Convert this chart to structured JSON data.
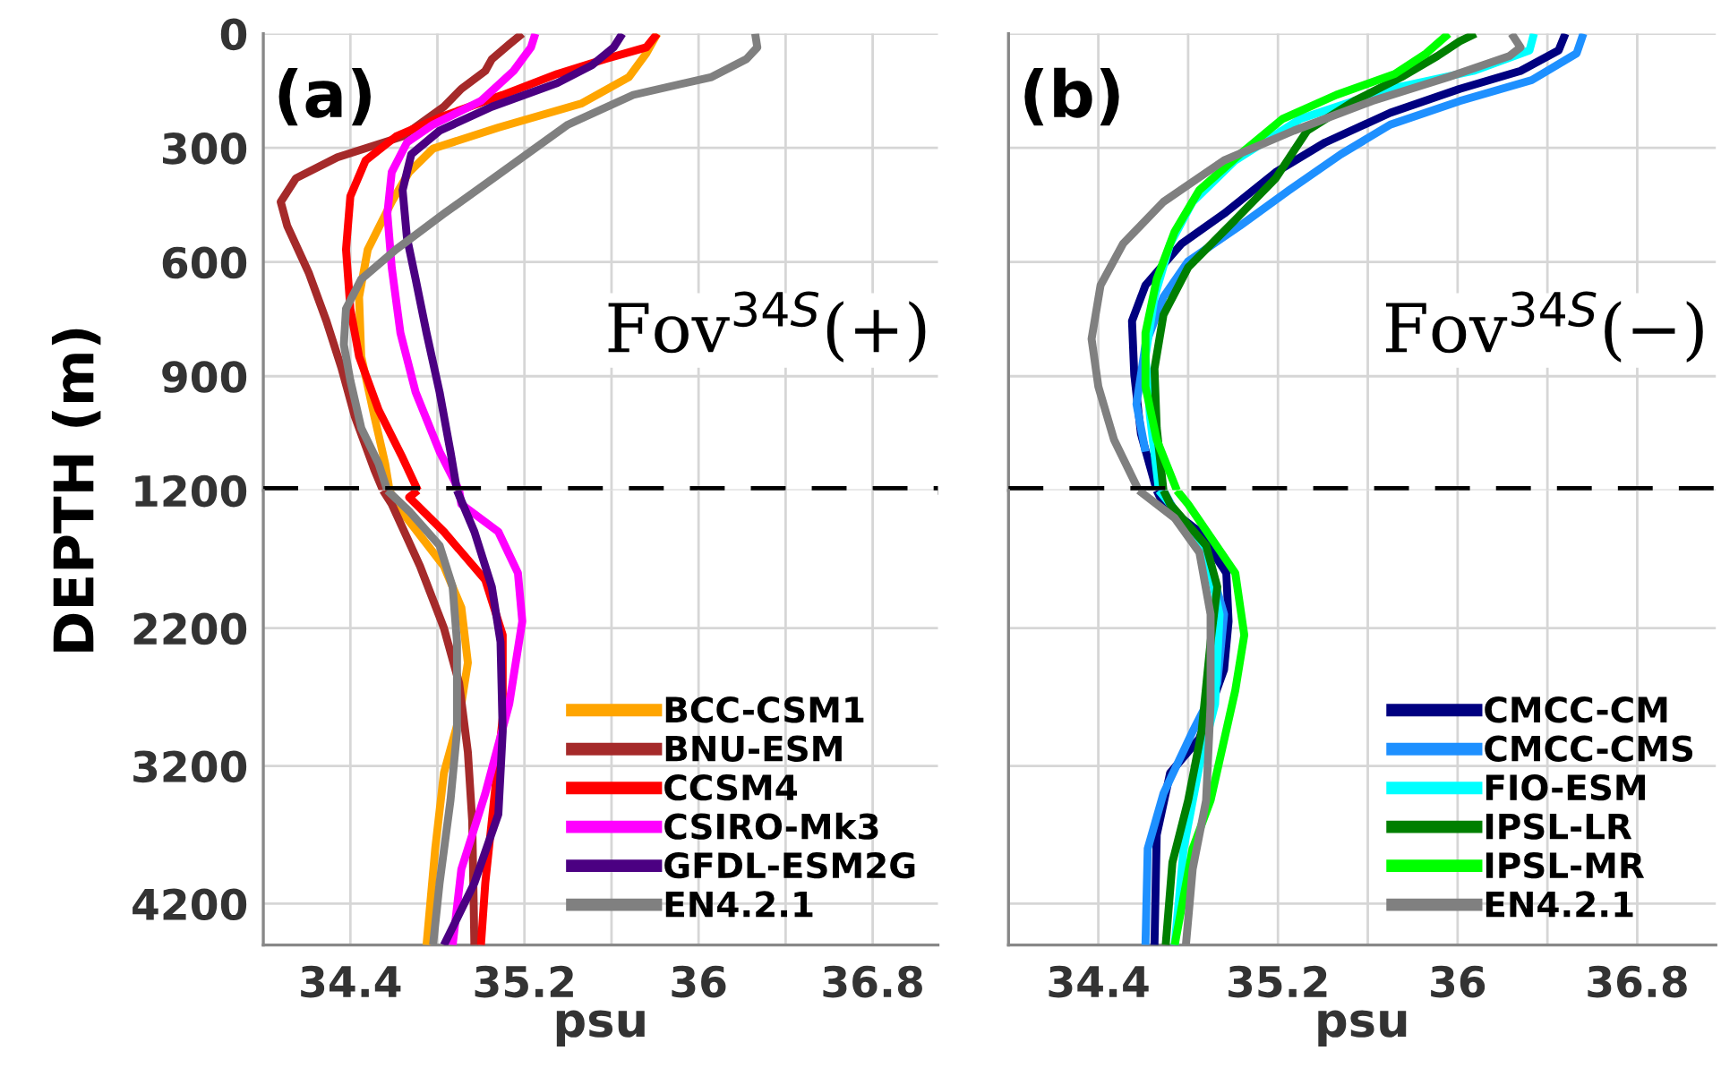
{
  "chart_data": [
    {
      "type": "line",
      "ylabel": "DEPTH (m)",
      "annotations": [
        "(a)",
        "Fov$^{34S}$(+)"
      ],
      "xlim": [
        34.0,
        37.1
      ],
      "xticks": [
        34.4,
        {
          "value": 34.8,
          "label": null
        },
        35.2,
        {
          "value": 35.6,
          "label": null
        },
        36,
        {
          "value": 36.4,
          "label": null
        },
        36.8
      ],
      "ylim": [
        1200,
        0
      ],
      "yticks": [
        0,
        300,
        600,
        900,
        1200
      ],
      "tick_labels": "y",
      "grid": true,
      "line_style": "solid",
      "ref_lines": [
        {
          "axis": "y",
          "value": 1200,
          "color": "#000000",
          "line_style": "dashed"
        }
      ],
      "series": [
        {
          "color": "#ffa500",
          "x": [
            35.81,
            35.76,
            35.68,
            35.46,
            35.08,
            34.78,
            34.67,
            34.59,
            34.48,
            34.44,
            34.45,
            34.51,
            34.56,
            34.58
          ],
          "values": [
            0,
            52,
            114,
            184,
            247,
            302,
            364,
            442,
            567,
            692,
            848,
            1005,
            1130,
            1200
          ]
        },
        {
          "color": "#a52a2a",
          "x": [
            35.19,
            35.13,
            35.05,
            35.02,
            34.91,
            34.83,
            34.64,
            34.34,
            34.15,
            34.08,
            34.11,
            34.21,
            34.29,
            34.36,
            34.42,
            34.51,
            34.55
          ],
          "values": [
            0,
            28,
            67,
            98,
            145,
            192,
            270,
            325,
            380,
            442,
            505,
            630,
            755,
            880,
            1005,
            1145,
            1200
          ]
        },
        {
          "color": "#ff0000",
          "x": [
            35.81,
            35.76,
            35.57,
            35.35,
            35.1,
            34.83,
            34.61,
            34.47,
            34.4,
            34.38,
            34.4,
            34.44,
            34.53,
            34.64,
            34.71
          ],
          "values": [
            0,
            36,
            67,
            106,
            161,
            216,
            270,
            333,
            427,
            567,
            723,
            848,
            989,
            1114,
            1200
          ]
        },
        {
          "color": "#ff00ff",
          "x": [
            35.25,
            35.23,
            35.15,
            35.0,
            34.78,
            34.66,
            34.59,
            34.57,
            34.59,
            34.63,
            34.7,
            34.81,
            34.9
          ],
          "values": [
            0,
            36,
            98,
            177,
            239,
            286,
            364,
            473,
            614,
            786,
            942,
            1098,
            1200
          ]
        },
        {
          "color": "#4b0082",
          "x": [
            35.65,
            35.61,
            35.51,
            35.35,
            35.05,
            34.81,
            34.68,
            34.64,
            34.66,
            34.7,
            34.75,
            34.81,
            34.86,
            34.89
          ],
          "values": [
            0,
            36,
            83,
            130,
            192,
            255,
            317,
            411,
            536,
            645,
            786,
            942,
            1098,
            1200
          ]
        },
        {
          "color": "#808080",
          "x": [
            36.26,
            36.27,
            36.22,
            36.06,
            35.7,
            35.4,
            35.21,
            35.02,
            34.83,
            34.61,
            34.45,
            34.38,
            34.37,
            34.4,
            34.45,
            34.53,
            34.57
          ],
          "values": [
            0,
            36,
            67,
            114,
            161,
            239,
            317,
            395,
            473,
            567,
            645,
            723,
            817,
            911,
            1036,
            1130,
            1200
          ]
        }
      ]
    },
    {
      "type": "line",
      "xlabel": "psu",
      "xlim": [
        34.0,
        37.1
      ],
      "xticks": [
        34.4,
        {
          "value": 34.8,
          "label": null
        },
        35.2,
        {
          "value": 35.6,
          "label": null
        },
        36,
        {
          "value": 36.4,
          "label": null
        },
        36.8
      ],
      "ylim": [
        4500,
        1200
      ],
      "yticks": [
        2200,
        3200,
        4200
      ],
      "grid": true,
      "legend": "bottom right",
      "line_style": "solid",
      "series": [
        {
          "name": "BCC-CSM1",
          "color": "#ffa500",
          "x": [
            34.58,
            34.61,
            34.83,
            34.91,
            34.94,
            34.9,
            34.83,
            34.79,
            34.75
          ],
          "values": [
            1200,
            1300,
            1750,
            2050,
            2450,
            2850,
            3250,
            3800,
            4500
          ]
        },
        {
          "name": "BNU-ESM",
          "color": "#a52a2a",
          "x": [
            34.55,
            34.59,
            34.72,
            34.83,
            34.9,
            34.94,
            34.96,
            34.97
          ],
          "values": [
            1200,
            1300,
            1750,
            2200,
            2600,
            3100,
            3600,
            4500
          ]
        },
        {
          "name": "CCSM4",
          "color": "#ff0000",
          "x": [
            34.71,
            34.67,
            34.83,
            35.02,
            35.1,
            35.1,
            35.06,
            35.02,
            35.0
          ],
          "values": [
            1200,
            1250,
            1500,
            1850,
            2250,
            2850,
            3450,
            4050,
            4500
          ]
        },
        {
          "name": "CSIRO-Mk3",
          "color": "#ff00ff",
          "x": [
            34.9,
            34.91,
            35.08,
            35.17,
            35.19,
            35.13,
            35.02,
            34.91,
            34.87
          ],
          "values": [
            1200,
            1300,
            1500,
            1800,
            2150,
            2750,
            3400,
            3950,
            4500
          ]
        },
        {
          "name": "GFDL-ESM2G",
          "color": "#4b0082",
          "x": [
            34.89,
            34.97,
            35.05,
            35.09,
            35.1,
            35.08,
            34.97,
            34.83
          ],
          "values": [
            1200,
            1500,
            1900,
            2300,
            2950,
            3550,
            4050,
            4500
          ]
        },
        {
          "name": "EN4.2.1",
          "color": "#808080",
          "x": [
            34.57,
            34.67,
            34.81,
            34.87,
            34.89,
            34.89,
            34.86,
            34.81,
            34.78
          ],
          "values": [
            1200,
            1350,
            1600,
            1900,
            2300,
            2950,
            3450,
            4050,
            4500
          ]
        }
      ]
    },
    {
      "type": "line",
      "annotations": [
        "(b)",
        "Fov$^{34S}$(−)"
      ],
      "xlim": [
        34.0,
        37.15
      ],
      "xticks": [
        34.4,
        {
          "value": 34.8,
          "label": null
        },
        35.2,
        {
          "value": 35.6,
          "label": null
        },
        36,
        {
          "value": 36.4,
          "label": null
        },
        36.8
      ],
      "ylim": [
        1200,
        0
      ],
      "yticks": [
        0,
        300,
        600,
        900,
        1200
      ],
      "tick_labels": false,
      "grid": true,
      "line_style": "solid",
      "ref_lines": [
        {
          "axis": "y",
          "value": 1200,
          "color": "#000000",
          "line_style": "dashed"
        }
      ],
      "series": [
        {
          "color": "#000080",
          "x": [
            36.48,
            36.45,
            36.28,
            36.01,
            35.7,
            35.41,
            35.19,
            34.96,
            34.77,
            34.61,
            34.55,
            34.56,
            34.59,
            34.66
          ],
          "values": [
            0,
            44,
            98,
            145,
            208,
            286,
            364,
            473,
            552,
            661,
            755,
            895,
            1052,
            1200
          ]
        },
        {
          "color": "#1e90ff",
          "x": [
            36.56,
            36.53,
            36.33,
            36.01,
            35.7,
            35.48,
            35.25,
            35.03,
            34.8,
            34.69,
            34.61,
            34.57,
            34.61,
            null
          ],
          "values": [
            0,
            52,
            122,
            177,
            239,
            317,
            411,
            505,
            598,
            692,
            817,
            973,
            1098,
            null
          ]
        },
        {
          "color": "#00ffff",
          "x": [
            36.34,
            36.32,
            36.07,
            35.7,
            35.3,
            35.01,
            34.82,
            34.72,
            34.65,
            34.61,
            34.63,
            34.67
          ],
          "values": [
            0,
            44,
            98,
            145,
            224,
            333,
            442,
            552,
            692,
            848,
            1005,
            1200
          ]
        },
        {
          "color": "#007f00",
          "x": [
            36.08,
            36.01,
            35.91,
            35.75,
            35.54,
            35.33,
            35.19,
            35.01,
            34.8,
            34.69,
            34.65,
            34.66,
            34.69
          ],
          "values": [
            0,
            20,
            59,
            114,
            177,
            255,
            380,
            489,
            614,
            739,
            880,
            1036,
            1200
          ]
        },
        {
          "color": "#00ff00",
          "x": [
            35.96,
            35.86,
            35.72,
            35.46,
            35.22,
            35.03,
            34.85,
            34.74,
            34.66,
            34.61,
            34.61,
            34.66,
            34.75
          ],
          "values": [
            0,
            52,
            106,
            161,
            224,
            317,
            411,
            520,
            645,
            786,
            927,
            1067,
            1200
          ]
        },
        {
          "color": "#808080",
          "x": [
            36.24,
            36.28,
            36.23,
            35.96,
            35.62,
            35.27,
            34.96,
            34.69,
            34.51,
            34.41,
            34.37,
            34.4,
            34.47,
            34.58
          ],
          "values": [
            0,
            36,
            59,
            114,
            177,
            255,
            333,
            442,
            552,
            661,
            802,
            927,
            1067,
            1200
          ]
        }
      ]
    },
    {
      "type": "line",
      "xlabel": "psu",
      "xlim": [
        34.0,
        37.15
      ],
      "xticks": [
        34.4,
        {
          "value": 34.8,
          "label": null
        },
        35.2,
        {
          "value": 35.6,
          "label": null
        },
        36,
        {
          "value": 36.4,
          "label": null
        },
        36.8
      ],
      "ylim": [
        4500,
        1200
      ],
      "yticks": [
        2200,
        3200,
        4200
      ],
      "tick_labels": "x",
      "grid": true,
      "legend": "bottom right",
      "line_style": "solid",
      "series": [
        {
          "name": "CMCC-CM",
          "color": "#000080",
          "x": [
            34.66,
            34.69,
            34.85,
            34.97,
            34.98,
            34.96,
            34.85,
            34.72,
            34.66,
            34.65
          ],
          "values": [
            1200,
            1300,
            1500,
            1800,
            2150,
            2500,
            3000,
            3250,
            3700,
            4500
          ]
        },
        {
          "name": "CMCC-CMS",
          "color": "#1e90ff",
          "x": [
            34.69,
            34.74,
            34.88,
            34.96,
            34.93,
            34.82,
            34.69,
            34.62,
            34.61
          ],
          "values": [
            1200,
            1350,
            1650,
            2100,
            2600,
            2950,
            3400,
            3800,
            4500
          ]
        },
        {
          "name": "FIO-ESM",
          "color": "#00ffff",
          "x": [
            34.67,
            34.72,
            34.88,
            34.94,
            34.92,
            34.85,
            34.78,
            34.74
          ],
          "values": [
            1200,
            1300,
            1650,
            2100,
            2750,
            3200,
            3800,
            4500
          ]
        },
        {
          "name": "IPSL-LR",
          "color": "#007f00",
          "x": [
            34.69,
            34.72,
            34.88,
            34.93,
            34.9,
            34.86,
            34.8,
            34.73,
            34.7
          ],
          "values": [
            1200,
            1300,
            1600,
            1900,
            2300,
            2950,
            3450,
            3900,
            4500
          ]
        },
        {
          "name": "IPSL-MR",
          "color": "#00ff00",
          "x": [
            34.75,
            34.8,
            35.01,
            35.05,
            35.01,
            34.9,
            34.82,
            34.74
          ],
          "values": [
            1200,
            1300,
            1800,
            2250,
            2650,
            3450,
            3800,
            4500
          ]
        },
        {
          "name": "EN4.2.1",
          "color": "#808080",
          "x": [
            34.58,
            34.74,
            34.85,
            34.9,
            34.9,
            34.88,
            34.82,
            34.79
          ],
          "values": [
            1200,
            1400,
            1650,
            2100,
            2750,
            3450,
            3950,
            4500
          ]
        }
      ]
    }
  ]
}
